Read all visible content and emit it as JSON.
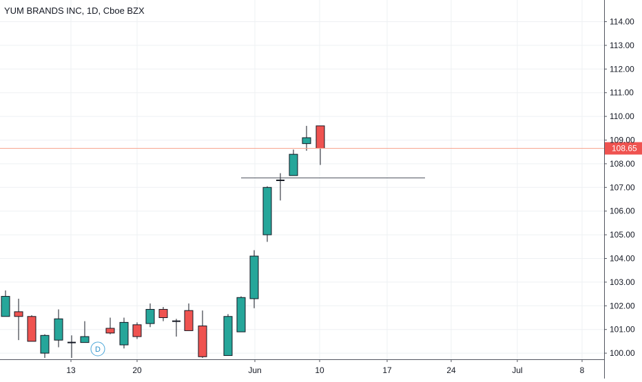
{
  "title": "YUM BRANDS INC, 1D, Cboe BZX",
  "chart_data": {
    "type": "candlestick",
    "y_axis": {
      "range": [
        99.8,
        115.0
      ],
      "ticks": [
        "100.00",
        "101.00",
        "102.00",
        "103.00",
        "104.00",
        "105.00",
        "106.00",
        "107.00",
        "108.00",
        "109.00",
        "110.00",
        "111.00",
        "112.00",
        "113.00",
        "114.00"
      ],
      "position": "right"
    },
    "x_axis": {
      "ticks": [
        "13",
        "20",
        "Jun",
        "10",
        "17",
        "24",
        "Jul",
        "8"
      ]
    },
    "last_price": {
      "value": 108.65,
      "label": "108.65",
      "color": "#ef5350"
    },
    "horizontal_line": {
      "value": 107.4
    },
    "event_marker": {
      "label": "D"
    },
    "candles": [
      {
        "open": 101.55,
        "high": 102.65,
        "low": 101.55,
        "close": 102.4
      },
      {
        "open": 101.75,
        "high": 102.3,
        "low": 100.55,
        "close": 101.55
      },
      {
        "open": 101.55,
        "high": 101.6,
        "low": 100.5,
        "close": 100.5
      },
      {
        "open": 100.0,
        "high": 100.8,
        "low": 99.8,
        "close": 100.75
      },
      {
        "open": 100.55,
        "high": 101.85,
        "low": 100.25,
        "close": 101.45
      },
      {
        "open": 100.45,
        "high": 100.75,
        "low": 99.8,
        "close": 100.45
      },
      {
        "open": 100.45,
        "high": 101.35,
        "low": 100.45,
        "close": 100.7
      },
      {
        "open": 101.05,
        "high": 101.5,
        "low": 100.8,
        "close": 100.85
      },
      {
        "open": 100.35,
        "high": 101.5,
        "low": 100.2,
        "close": 101.3
      },
      {
        "open": 101.2,
        "high": 101.3,
        "low": 100.6,
        "close": 100.7
      },
      {
        "open": 101.25,
        "high": 102.1,
        "low": 101.1,
        "close": 101.85
      },
      {
        "open": 101.85,
        "high": 101.95,
        "low": 101.35,
        "close": 101.5
      },
      {
        "open": 101.3,
        "high": 101.45,
        "low": 100.7,
        "close": 101.35
      },
      {
        "open": 101.8,
        "high": 102.1,
        "low": 100.95,
        "close": 100.95
      },
      {
        "open": 101.15,
        "high": 101.8,
        "low": 99.8,
        "close": 99.85
      },
      {
        "open": 99.9,
        "high": 101.65,
        "low": 99.9,
        "close": 101.55
      },
      {
        "open": 100.9,
        "high": 102.4,
        "low": 100.9,
        "close": 102.35
      },
      {
        "open": 102.3,
        "high": 104.35,
        "low": 101.9,
        "close": 104.1
      },
      {
        "open": 105.0,
        "high": 107.05,
        "low": 104.7,
        "close": 107.0
      },
      {
        "open": 107.25,
        "high": 107.6,
        "low": 106.45,
        "close": 107.3
      },
      {
        "open": 107.5,
        "high": 108.6,
        "low": 107.5,
        "close": 108.4
      },
      {
        "open": 108.85,
        "high": 109.6,
        "low": 108.55,
        "close": 109.1
      },
      {
        "open": 109.6,
        "high": 109.6,
        "low": 107.95,
        "close": 108.65
      }
    ]
  }
}
